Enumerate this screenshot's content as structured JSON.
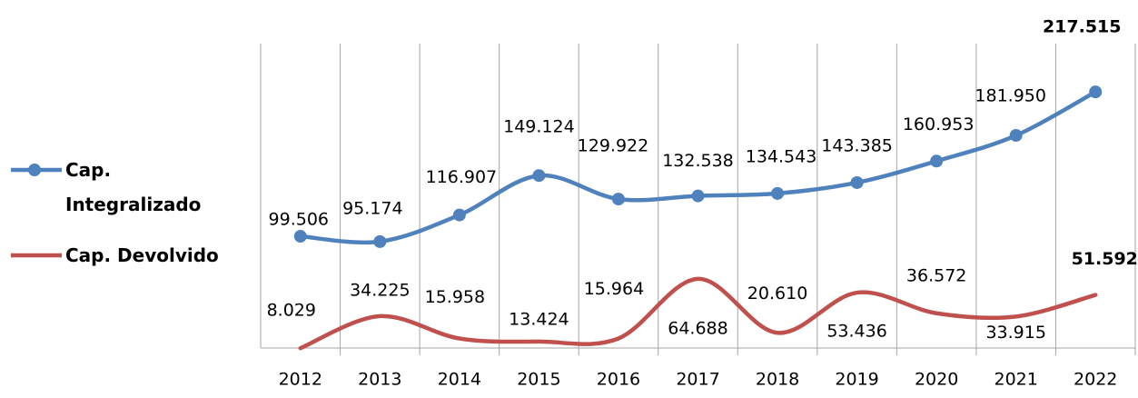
{
  "chart_data": {
    "type": "line",
    "categories": [
      "2012",
      "2013",
      "2014",
      "2015",
      "2016",
      "2017",
      "2018",
      "2019",
      "2020",
      "2021",
      "2022"
    ],
    "series": [
      {
        "name": "Cap. Integralizado",
        "color": "#4f81bd",
        "values": [
          99.506,
          95.174,
          116.907,
          149.124,
          129.922,
          132.538,
          134.543,
          143.385,
          160.953,
          181.95,
          217.515
        ],
        "value_labels": [
          "99.506",
          "95.174",
          "116.907",
          "149.124",
          "129.922",
          "132.538",
          "134.543",
          "143.385",
          "160.953",
          "181.950",
          "217.515"
        ]
      },
      {
        "name": "Cap. Devolvido",
        "color": "#c0504d",
        "values": [
          8.029,
          34.225,
          15.958,
          13.424,
          15.964,
          64.688,
          20.61,
          53.436,
          36.572,
          33.915,
          51.592
        ],
        "value_labels": [
          "8.029",
          "34.225",
          "15.958",
          "13.424",
          "15.964",
          "64.688",
          "20.610",
          "53.436",
          "36.572",
          "33.915",
          "51.592"
        ]
      }
    ],
    "ylim": [
      0,
      257
    ],
    "legend": "left",
    "grid": true
  }
}
